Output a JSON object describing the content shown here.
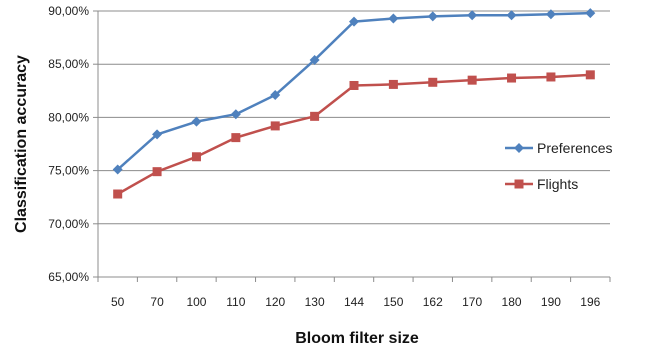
{
  "chart_data": {
    "type": "line",
    "title": "",
    "xlabel": "Bloom filter size",
    "ylabel": "Classification accuracy",
    "categories": [
      "50",
      "70",
      "100",
      "110",
      "120",
      "130",
      "144",
      "150",
      "162",
      "170",
      "180",
      "190",
      "196"
    ],
    "ylim": [
      0.65,
      0.9
    ],
    "yticks": [
      "65,00%",
      "70,00%",
      "75,00%",
      "80,00%",
      "85,00%",
      "90,00%"
    ],
    "ytick_values": [
      0.65,
      0.7,
      0.75,
      0.8,
      0.85,
      0.9
    ],
    "grid": "horizontal",
    "legend_position": "right",
    "series": [
      {
        "name": "Preferences",
        "marker": "diamond",
        "color": "#4f81bd",
        "values": [
          0.751,
          0.784,
          0.796,
          0.803,
          0.821,
          0.854,
          0.89,
          0.893,
          0.895,
          0.896,
          0.896,
          0.897,
          0.898
        ]
      },
      {
        "name": "Flights",
        "marker": "square",
        "color": "#c0504d",
        "values": [
          0.728,
          0.749,
          0.763,
          0.781,
          0.792,
          0.801,
          0.83,
          0.831,
          0.833,
          0.835,
          0.837,
          0.838,
          0.84
        ]
      }
    ]
  }
}
